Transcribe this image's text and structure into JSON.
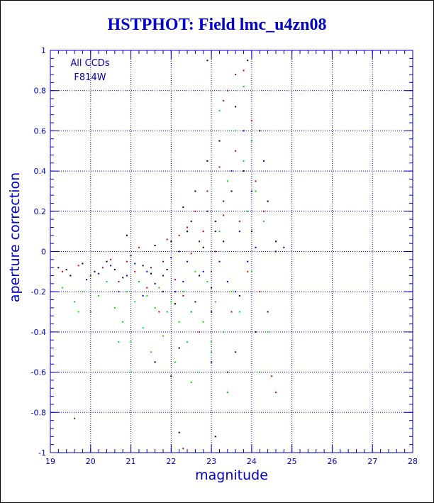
{
  "chart_data": {
    "type": "scatter",
    "title": "HSTPHOT: Field lmc_u4zn08",
    "xlabel": "magnitude",
    "ylabel": "aperture correction",
    "xlim": [
      19,
      28
    ],
    "ylim": [
      -1,
      1
    ],
    "x_ticks": [
      19,
      20,
      21,
      22,
      23,
      24,
      25,
      26,
      27,
      28
    ],
    "y_ticks": [
      -1,
      -0.8,
      -0.6,
      -0.4,
      -0.2,
      0,
      0.2,
      0.4,
      0.6,
      0.8,
      1
    ],
    "grid": true,
    "annotations": [
      "All CCDs",
      "F814W"
    ],
    "series": [
      {
        "color": "#000000",
        "points": [
          [
            19.2,
            -0.08
          ],
          [
            19.5,
            -0.12
          ],
          [
            19.8,
            -0.06
          ],
          [
            20.1,
            -0.1
          ],
          [
            20.4,
            -0.05
          ],
          [
            20.6,
            -0.09
          ],
          [
            20.8,
            -0.13
          ],
          [
            20.9,
            0.08
          ],
          [
            21.0,
            -0.02
          ],
          [
            21.2,
            -0.15
          ],
          [
            21.3,
            -0.07
          ],
          [
            21.5,
            -0.11
          ],
          [
            21.6,
            0.03
          ],
          [
            21.8,
            -0.2
          ],
          [
            21.9,
            -0.09
          ],
          [
            22.0,
            0.05
          ],
          [
            22.1,
            -0.26
          ],
          [
            22.2,
            -0.48
          ],
          [
            22.3,
            0.22
          ],
          [
            22.4,
            0.1
          ],
          [
            22.5,
            -0.3
          ],
          [
            22.6,
            0.3
          ],
          [
            22.7,
            -0.12
          ],
          [
            22.8,
            0.02
          ],
          [
            22.9,
            0.45
          ],
          [
            22.9,
            0.95
          ],
          [
            23.0,
            -0.18
          ],
          [
            23.1,
            0.15
          ],
          [
            23.2,
            0.55
          ],
          [
            23.3,
            0.05
          ],
          [
            23.4,
            -0.6
          ],
          [
            23.5,
            0.3
          ],
          [
            23.6,
            0.72
          ],
          [
            23.7,
            -0.22
          ],
          [
            23.8,
            0.4
          ],
          [
            23.9,
            0.95
          ],
          [
            24.0,
            0.1
          ],
          [
            24.1,
            -0.4
          ],
          [
            24.2,
            0.6
          ],
          [
            24.4,
            0.25
          ],
          [
            24.6,
            0.05
          ],
          [
            22.0,
            -0.62
          ],
          [
            21.6,
            -0.55
          ],
          [
            22.2,
            -0.9
          ],
          [
            23.1,
            -0.92
          ]
        ]
      },
      {
        "color": "#d00000",
        "points": [
          [
            19.3,
            -0.1
          ],
          [
            19.6,
            -0.83
          ],
          [
            19.7,
            -0.07
          ],
          [
            20.0,
            -0.12
          ],
          [
            20.3,
            -0.08
          ],
          [
            20.5,
            -0.04
          ],
          [
            20.7,
            -0.15
          ],
          [
            20.9,
            -0.05
          ],
          [
            21.1,
            -0.1
          ],
          [
            21.2,
            0.02
          ],
          [
            21.4,
            -0.18
          ],
          [
            21.5,
            -0.08
          ],
          [
            21.7,
            -0.3
          ],
          [
            21.8,
            -0.05
          ],
          [
            21.9,
            0.06
          ],
          [
            22.1,
            -0.14
          ],
          [
            22.2,
            0.08
          ],
          [
            22.3,
            -0.22
          ],
          [
            22.4,
            0.12
          ],
          [
            22.5,
            -0.01
          ],
          [
            22.6,
            0.2
          ],
          [
            22.7,
            -0.4
          ],
          [
            22.8,
            0.1
          ],
          [
            22.9,
            0.3
          ],
          [
            23.0,
            -0.1
          ],
          [
            23.1,
            0.0
          ],
          [
            23.2,
            0.42
          ],
          [
            23.3,
            0.18
          ],
          [
            23.4,
            0.8
          ],
          [
            23.5,
            -0.3
          ],
          [
            23.6,
            0.5
          ],
          [
            23.7,
            0.15
          ],
          [
            23.8,
            0.9
          ],
          [
            23.9,
            -0.1
          ],
          [
            24.0,
            0.65
          ],
          [
            24.1,
            0.35
          ],
          [
            24.2,
            -0.2
          ],
          [
            24.3,
            0.2
          ],
          [
            24.5,
            -0.62
          ],
          [
            24.6,
            -0.7
          ],
          [
            23.4,
            -0.7
          ],
          [
            22.3,
            -0.98
          ],
          [
            23.6,
            0.88
          ],
          [
            23.3,
            0.75
          ]
        ]
      },
      {
        "color": "#0000e0",
        "points": [
          [
            19.4,
            -0.09
          ],
          [
            19.9,
            -0.14
          ],
          [
            20.2,
            -0.11
          ],
          [
            20.5,
            -0.07
          ],
          [
            20.7,
            -0.2
          ],
          [
            20.9,
            -0.12
          ],
          [
            21.1,
            -0.06
          ],
          [
            21.3,
            -0.22
          ],
          [
            21.4,
            -0.1
          ],
          [
            21.6,
            -0.16
          ],
          [
            21.8,
            -0.12
          ],
          [
            22.0,
            -0.03
          ],
          [
            22.1,
            -0.2
          ],
          [
            22.2,
            0.0
          ],
          [
            22.3,
            -0.15
          ],
          [
            22.4,
            -0.05
          ],
          [
            22.5,
            0.15
          ],
          [
            22.6,
            -0.25
          ],
          [
            22.7,
            0.05
          ],
          [
            22.8,
            -0.1
          ],
          [
            22.9,
            0.2
          ],
          [
            23.0,
            -0.3
          ],
          [
            23.1,
            0.1
          ],
          [
            23.2,
            -0.05
          ],
          [
            23.3,
            0.25
          ],
          [
            23.4,
            -0.15
          ],
          [
            23.5,
            0.4
          ],
          [
            23.6,
            -0.2
          ],
          [
            23.7,
            0.1
          ],
          [
            23.8,
            0.6
          ],
          [
            23.9,
            -0.05
          ],
          [
            24.0,
            0.3
          ],
          [
            24.1,
            0.02
          ],
          [
            24.3,
            0.45
          ],
          [
            24.4,
            -0.3
          ],
          [
            24.6,
            0.0
          ],
          [
            23.6,
            -0.5
          ],
          [
            23.0,
            -0.55
          ],
          [
            24.8,
            0.02
          ]
        ]
      },
      {
        "color": "#00e000",
        "points": [
          [
            19.3,
            -0.18
          ],
          [
            19.6,
            -0.25
          ],
          [
            19.8,
            -0.2
          ],
          [
            20.0,
            -0.3
          ],
          [
            20.2,
            -0.22
          ],
          [
            20.4,
            -0.15
          ],
          [
            20.6,
            -0.28
          ],
          [
            20.8,
            -0.35
          ],
          [
            20.9,
            -0.2
          ],
          [
            21.0,
            -0.45
          ],
          [
            21.1,
            -0.25
          ],
          [
            21.2,
            -0.15
          ],
          [
            21.3,
            -0.38
          ],
          [
            21.4,
            -0.22
          ],
          [
            21.5,
            -0.5
          ],
          [
            21.6,
            -0.28
          ],
          [
            21.7,
            -0.18
          ],
          [
            21.8,
            -0.42
          ],
          [
            21.9,
            -0.3
          ],
          [
            22.0,
            -0.25
          ],
          [
            22.1,
            -0.55
          ],
          [
            22.2,
            -0.35
          ],
          [
            22.3,
            -0.2
          ],
          [
            22.4,
            -0.45
          ],
          [
            22.5,
            -0.3
          ],
          [
            22.6,
            -0.1
          ],
          [
            22.7,
            -0.6
          ],
          [
            22.8,
            -0.35
          ],
          [
            22.9,
            -0.15
          ],
          [
            23.0,
            -0.5
          ],
          [
            23.1,
            -0.25
          ],
          [
            23.2,
            0.1
          ],
          [
            23.3,
            -0.4
          ],
          [
            23.4,
            0.35
          ],
          [
            23.5,
            -0.2
          ],
          [
            23.6,
            0.6
          ],
          [
            23.7,
            -0.3
          ],
          [
            23.8,
            0.45
          ],
          [
            23.9,
            0.2
          ],
          [
            24.0,
            -0.1
          ],
          [
            24.1,
            0.3
          ],
          [
            24.2,
            -0.6
          ],
          [
            24.3,
            0.15
          ],
          [
            24.4,
            -0.4
          ],
          [
            23.4,
            -0.7
          ],
          [
            23.0,
            -0.45
          ],
          [
            22.5,
            -0.65
          ],
          [
            23.2,
            0.7
          ],
          [
            23.8,
            0.82
          ],
          [
            24.0,
            0.55
          ],
          [
            20.7,
            -0.45
          ],
          [
            21.0,
            -0.6
          ],
          [
            19.7,
            -0.3
          ]
        ]
      }
    ]
  }
}
